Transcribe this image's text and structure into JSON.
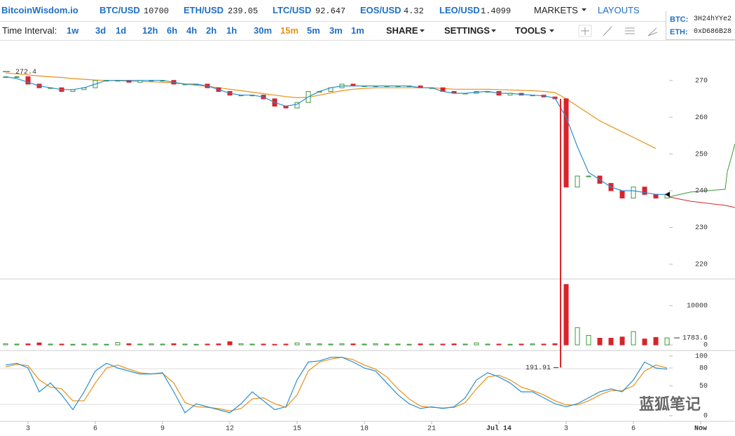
{
  "header": {
    "logo": "BitcoinWisdom.io",
    "tickers": [
      {
        "pair": "BTC/USD",
        "price": 10700
      },
      {
        "pair": "ETH/USD",
        "price": 239.05
      },
      {
        "pair": "LTC/USD",
        "price": 92.647
      },
      {
        "pair": "EOS/USD",
        "price": 4.32
      },
      {
        "pair": "LEO/USD",
        "price": 1.4099
      }
    ],
    "markets": "MARKETS",
    "layouts": "LAYOUTS",
    "addresses": [
      {
        "coin": "BTC:",
        "address": "3H24hYYe2"
      },
      {
        "coin": "ETH:",
        "address": "0xD686B28"
      }
    ]
  },
  "toolbar": {
    "label": "Time Interval:",
    "intervals": [
      "1w",
      "3d",
      "1d",
      "12h",
      "6h",
      "4h",
      "2h",
      "1h",
      "30m",
      "15m",
      "5m",
      "3m",
      "1m"
    ],
    "active": "15m",
    "menus": [
      "SHARE",
      "SETTINGS",
      "TOOLS"
    ]
  },
  "chart_data": {
    "type": "candlestick",
    "x": [
      2,
      2.5,
      3,
      3.5,
      4,
      4.5,
      5,
      5.5,
      6,
      6.5,
      7,
      7.5,
      8,
      8.5,
      9,
      9.5,
      10,
      10.5,
      11,
      11.5,
      12,
      12.5,
      13,
      13.5,
      14,
      14.5,
      15,
      15.5,
      16,
      16.5,
      17,
      17.5,
      18,
      18.5,
      19,
      19.5,
      20,
      20.5,
      21,
      21.5,
      22,
      22.5,
      23,
      23.5,
      24,
      24.5,
      25,
      25.5,
      26,
      26.5,
      27,
      27.5,
      28,
      28.5,
      29,
      29.5,
      30,
      30.5,
      31,
      31.5
    ],
    "close": [
      271,
      271,
      269,
      268,
      268,
      267,
      267.5,
      268,
      270,
      270,
      270,
      269.5,
      270,
      270,
      270,
      269,
      269,
      269,
      268,
      267,
      266,
      266,
      266,
      265,
      263,
      262.5,
      264,
      267,
      267,
      268,
      269,
      268.5,
      268.5,
      268.5,
      268.5,
      268.5,
      268.5,
      268,
      268,
      267,
      266.5,
      266.5,
      267,
      267,
      266,
      266.5,
      266,
      266,
      265.5,
      265,
      241,
      244,
      244,
      242,
      240,
      238,
      241,
      239,
      238,
      239
    ],
    "up_color": "#3a9a3a",
    "down_color": "#d9232a",
    "ma_short": {
      "color": "#2a8fd0",
      "values": [
        271,
        270.5,
        269.5,
        268.5,
        268,
        267.5,
        267.5,
        268,
        269,
        270,
        270,
        270,
        270,
        270,
        270,
        269.5,
        269,
        269,
        268.5,
        267.5,
        266.5,
        266,
        266,
        265.5,
        264,
        263,
        263.5,
        265.5,
        267,
        268,
        268.5,
        268.5,
        268.5,
        268.5,
        268.5,
        268.5,
        268.5,
        268,
        268,
        267,
        266.5,
        266.5,
        266.8,
        267,
        266.5,
        266.5,
        266.2,
        266,
        265.8,
        265.2,
        260,
        252,
        245,
        243,
        241,
        240,
        240,
        239.5,
        239,
        239
      ]
    },
    "ma_long": {
      "color": "#e8901a",
      "values": [
        272,
        271.8,
        271.5,
        271.2,
        271,
        270.8,
        270.5,
        270.3,
        270.1,
        270,
        269.9,
        269.8,
        269.7,
        269.6,
        269.5,
        269.3,
        269,
        268.7,
        268.4,
        268,
        267.6,
        267.2,
        266.8,
        266.4,
        266,
        265.6,
        265.3,
        265.4,
        266,
        266.6,
        267.2,
        267.6,
        267.8,
        268,
        268,
        268,
        268,
        268,
        268,
        267.8,
        267.6,
        267.6,
        267.6,
        267.6,
        267.5,
        267.4,
        267.3,
        267.2,
        267,
        266.7,
        265,
        263,
        261,
        259,
        257.5,
        256,
        254.5,
        253,
        251.5,
        null
      ]
    },
    "xlim": [
      1.75,
      34.53
    ],
    "xticks": [
      3,
      6,
      9,
      12,
      15,
      18,
      21,
      {
        "value": 24,
        "label": "Jul 14"
      },
      {
        "value": 27,
        "label": "3"
      },
      {
        "value": 30,
        "label": "6"
      },
      {
        "value": 33,
        "label": "Now"
      }
    ],
    "ylim": [
      216,
      281
    ],
    "yticks": [
      220,
      230,
      240,
      250,
      260,
      270
    ],
    "volume": [
      300,
      200,
      250,
      500,
      200,
      200,
      150,
      200,
      250,
      150,
      600,
      300,
      200,
      250,
      200,
      300,
      200,
      150,
      200,
      250,
      800,
      300,
      200,
      200,
      150,
      200,
      500,
      300,
      250,
      200,
      300,
      250,
      200,
      300,
      200,
      200,
      150,
      250,
      200,
      200,
      250,
      200,
      500,
      200,
      200,
      150,
      200,
      250,
      200,
      300,
      15400,
      4400,
      2400,
      1700,
      1700,
      2000,
      3400,
      1500,
      1900,
      1783.6
    ],
    "volume_ylim": [
      0,
      16800
    ],
    "volume_yticks": [
      0,
      10000
    ],
    "stoch_k": {
      "color": "#2a8fd0",
      "values": [
        85,
        88,
        80,
        40,
        55,
        35,
        10,
        40,
        75,
        88,
        80,
        75,
        70,
        70,
        72,
        40,
        5,
        20,
        15,
        10,
        5,
        20,
        40,
        25,
        10,
        15,
        60,
        90,
        92,
        98,
        98,
        90,
        80,
        75,
        55,
        35,
        20,
        12,
        15,
        12,
        15,
        30,
        60,
        72,
        65,
        55,
        40,
        40,
        30,
        20,
        15,
        20,
        30,
        40,
        45,
        40,
        60,
        90,
        80,
        78
      ]
    },
    "stoch_d": {
      "color": "#e8901a",
      "values": [
        82,
        86,
        84,
        60,
        48,
        45,
        25,
        25,
        55,
        80,
        85,
        78,
        72,
        70,
        71,
        55,
        22,
        15,
        14,
        12,
        8,
        12,
        28,
        30,
        20,
        14,
        35,
        75,
        90,
        95,
        98,
        94,
        85,
        78,
        65,
        45,
        28,
        16,
        14,
        13,
        14,
        22,
        45,
        65,
        68,
        60,
        48,
        42,
        35,
        25,
        18,
        18,
        25,
        35,
        42,
        42,
        50,
        75,
        85,
        80
      ]
    },
    "stoch_ylim": [
      0,
      100
    ],
    "stoch_yticks": [
      0,
      50,
      80,
      100
    ],
    "annotations": {
      "high": 272.4,
      "low": 191.91,
      "last_volume": 1783.6
    }
  },
  "watermark": "蓝狐笔记"
}
